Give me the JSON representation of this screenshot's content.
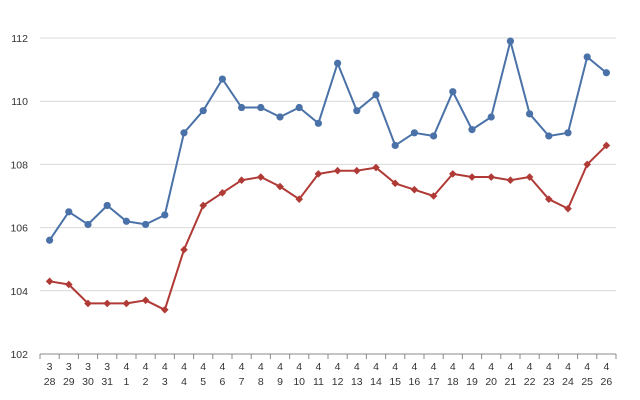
{
  "chart_data": {
    "type": "line",
    "title": "",
    "xlabel": "",
    "ylabel": "",
    "categories": [
      [
        "3",
        "28"
      ],
      [
        "3",
        "29"
      ],
      [
        "3",
        "30"
      ],
      [
        "3",
        "31"
      ],
      [
        "4",
        "1"
      ],
      [
        "4",
        "2"
      ],
      [
        "4",
        "3"
      ],
      [
        "4",
        "4"
      ],
      [
        "4",
        "5"
      ],
      [
        "4",
        "6"
      ],
      [
        "4",
        "7"
      ],
      [
        "4",
        "8"
      ],
      [
        "4",
        "9"
      ],
      [
        "4",
        "10"
      ],
      [
        "4",
        "11"
      ],
      [
        "4",
        "12"
      ],
      [
        "4",
        "13"
      ],
      [
        "4",
        "14"
      ],
      [
        "4",
        "15"
      ],
      [
        "4",
        "16"
      ],
      [
        "4",
        "17"
      ],
      [
        "4",
        "18"
      ],
      [
        "4",
        "19"
      ],
      [
        "4",
        "20"
      ],
      [
        "4",
        "21"
      ],
      [
        "4",
        "22"
      ],
      [
        "4",
        "23"
      ],
      [
        "4",
        "24"
      ],
      [
        "4",
        "25"
      ],
      [
        "4",
        "26"
      ]
    ],
    "ylim": [
      102,
      112
    ],
    "yticks": [
      102,
      104,
      106,
      108,
      110,
      112
    ],
    "grid": true,
    "legend": "none",
    "series": [
      {
        "color": "#4a72a8",
        "marker": "circle",
        "values": [
          105.6,
          106.5,
          106.1,
          106.7,
          106.2,
          106.1,
          106.4,
          109.0,
          109.7,
          110.7,
          109.8,
          109.8,
          109.5,
          109.8,
          109.3,
          111.2,
          109.7,
          110.2,
          108.6,
          109.0,
          108.9,
          110.3,
          109.1,
          109.5,
          111.9,
          109.6,
          108.9,
          109.0,
          111.4,
          110.9
        ]
      },
      {
        "color": "#b03a36",
        "marker": "diamond",
        "values": [
          104.3,
          104.2,
          103.6,
          103.6,
          103.6,
          103.7,
          103.4,
          105.3,
          106.7,
          107.1,
          107.5,
          107.6,
          107.3,
          106.9,
          107.7,
          107.8,
          107.8,
          107.9,
          107.4,
          107.2,
          107.0,
          107.7,
          107.6,
          107.6,
          107.5,
          107.6,
          106.9,
          106.6,
          108.0,
          108.6
        ]
      }
    ]
  }
}
